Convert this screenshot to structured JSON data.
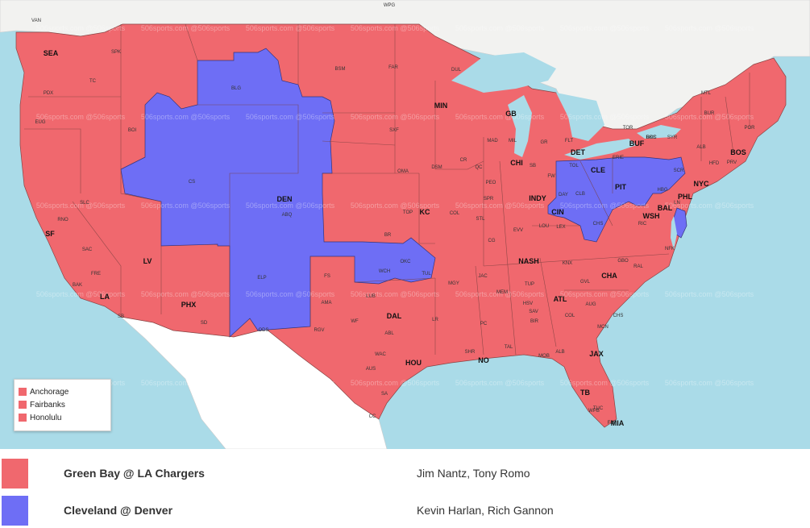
{
  "colors": {
    "water": "#aadbe8",
    "red": "#f0686e",
    "blue": "#6e6ef5",
    "land_outside": "#ffffff",
    "border": "#7a3f3f"
  },
  "map": {
    "watermark": "506sports.com @506sports",
    "major_cities": [
      "SEA",
      "MIN",
      "GB",
      "DET",
      "CLE",
      "BUF",
      "BOS",
      "NYC",
      "PHL",
      "PIT",
      "BAL",
      "WSH",
      "CHI",
      "INDY",
      "CIN",
      "DEN",
      "KC",
      "SF",
      "LV",
      "LA",
      "PHX",
      "DAL",
      "HOU",
      "NO",
      "NASH",
      "ATL",
      "CHA",
      "JAX",
      "TB",
      "MIA"
    ],
    "minor_cities": [
      "VAN",
      "WPG",
      "SPK",
      "PDX",
      "TC",
      "EUG",
      "BOI",
      "BLG",
      "BSM",
      "FAR",
      "DUL",
      "MTL",
      "BUR",
      "POR",
      "ALB",
      "HFD",
      "PRV",
      "ROC",
      "SYR",
      "TOR",
      "ERIE",
      "SCR",
      "HBG",
      "LN",
      "SXF",
      "MAD",
      "MIL",
      "GR",
      "FLT",
      "TOL",
      "FW",
      "SB",
      "DAY",
      "CLB",
      "CHS",
      "PEO",
      "SPR",
      "QC",
      "CR",
      "DSM",
      "OMA",
      "TOP",
      "COL",
      "STL",
      "CG",
      "EVV",
      "LOU",
      "LEX",
      "RIC",
      "NFK",
      "KNX",
      "GBO",
      "RAL",
      "GVL",
      "AUG",
      "CHS",
      "COL",
      "MCN",
      "SAV",
      "ALB",
      "TAL",
      "MOB",
      "PC",
      "JAC",
      "MEM",
      "TUP",
      "HSV",
      "BIR",
      "MGY",
      "LR",
      "SHR",
      "BR",
      "WCH",
      "OKC",
      "TUL",
      "FS",
      "AMA",
      "LUB",
      "WF",
      "ABL",
      "WAC",
      "AUS",
      "SA",
      "CC",
      "RGV",
      "ODS",
      "ELP",
      "ABQ",
      "CS",
      "SLC",
      "RNO",
      "SAC",
      "FRE",
      "BAK",
      "SB",
      "SD",
      "TUC",
      "WPB",
      "FM",
      "BKS",
      "ROC"
    ]
  },
  "legend": {
    "items": [
      {
        "label": "Anchorage",
        "color": "#f0686e"
      },
      {
        "label": "Fairbanks",
        "color": "#f0686e"
      },
      {
        "label": "Honolulu",
        "color": "#f0686e"
      }
    ]
  },
  "games": [
    {
      "matchup": "Green Bay @ LA Chargers",
      "announcers": "Jim Nantz, Tony Romo",
      "color": "#f0686e"
    },
    {
      "matchup": "Cleveland @ Denver",
      "announcers": "Kevin Harlan, Rich Gannon",
      "color": "#6e6ef5"
    }
  ]
}
